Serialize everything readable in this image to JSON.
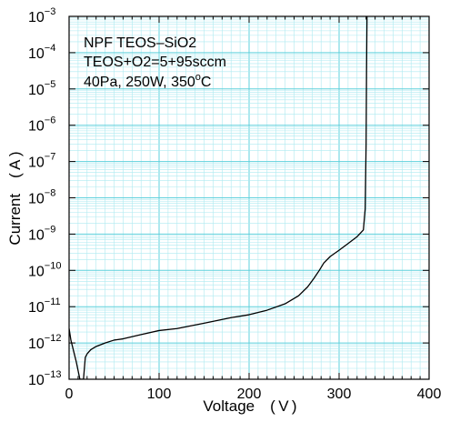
{
  "chart_data": {
    "type": "line",
    "xlabel": "Voltage　( V )",
    "ylabel": "Current　( A )",
    "xlim": [
      0,
      400
    ],
    "ylim": [
      1e-13,
      0.001
    ],
    "yscale": "log",
    "grid": true,
    "x_ticks": [
      "0",
      "100",
      "200",
      "300",
      "400"
    ],
    "y_ticks": [
      {
        "base": "10",
        "exp": "−13"
      },
      {
        "base": "10",
        "exp": "−12"
      },
      {
        "base": "10",
        "exp": "−11"
      },
      {
        "base": "10",
        "exp": "−10"
      },
      {
        "base": "10",
        "exp": "−9"
      },
      {
        "base": "10",
        "exp": "−8"
      },
      {
        "base": "10",
        "exp": "−7"
      },
      {
        "base": "10",
        "exp": "−6"
      },
      {
        "base": "10",
        "exp": "−5"
      },
      {
        "base": "10",
        "exp": "−4"
      },
      {
        "base": "10",
        "exp": "−3"
      }
    ],
    "annotations": [
      "NPF TEOS–SiO2",
      "TEOS+O2=5+95sccm",
      {
        "text": "40Pa, 250W, 350",
        "sup": "o",
        "suffix": "C"
      }
    ],
    "series": [
      {
        "color": "#000000",
        "x": [
          0,
          2,
          5,
          8,
          12,
          14,
          16,
          18,
          20,
          24,
          30,
          40,
          50,
          60,
          80,
          100,
          120,
          150,
          180,
          200,
          220,
          240,
          255,
          265,
          272,
          278,
          283,
          290,
          300,
          310,
          320,
          327,
          329,
          330,
          330.5,
          331
        ],
        "y": [
          2.5e-12,
          1.2e-12,
          6e-13,
          3e-13,
          1e-13,
          1e-13,
          1e-13,
          4e-13,
          5e-13,
          6.5e-13,
          8e-13,
          1e-12,
          1.2e-12,
          1.3e-12,
          1.7e-12,
          2.2e-12,
          2.5e-12,
          3.5e-12,
          5e-12,
          6e-12,
          8e-12,
          1.2e-11,
          2e-11,
          3.5e-11,
          6e-11,
          1e-10,
          1.6e-10,
          2.4e-10,
          3.6e-10,
          5.5e-10,
          8.5e-10,
          1.3e-09,
          5e-09,
          3e-07,
          3e-05,
          0.001
        ]
      }
    ]
  }
}
